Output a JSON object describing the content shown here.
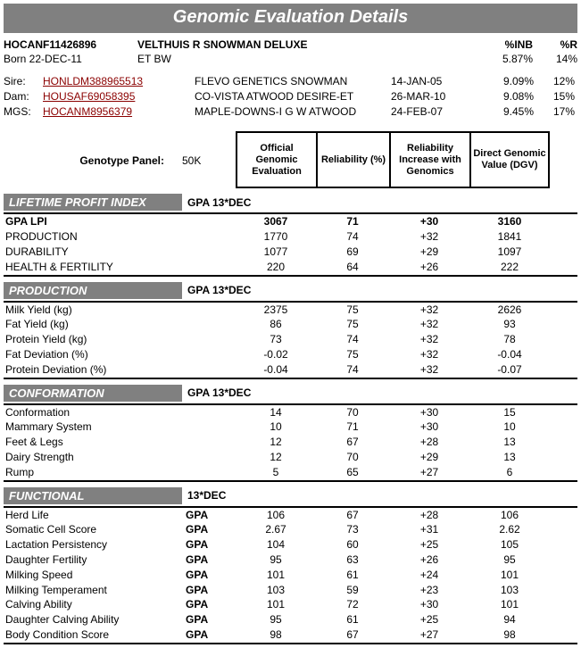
{
  "title": "Genomic Evaluation Details",
  "animal": {
    "id": "HOCANF11426896",
    "name": "VELTHUIS R SNOWMAN DELUXE",
    "born_label": "Born 22-DEC-11",
    "et": "ET BW",
    "inb_label": "%INB",
    "r_label": "%R",
    "inb": "5.87%",
    "r": "14%"
  },
  "lineage": [
    {
      "role": "Sire:",
      "id": "HONLDM388965513",
      "name": "FLEVO GENETICS SNOWMAN",
      "date": "14-JAN-05",
      "inb": "9.09%",
      "r": "12%"
    },
    {
      "role": "Dam:",
      "id": "HOUSAF69058395",
      "name": "CO-VISTA ATWOOD DESIRE-ET",
      "date": "26-MAR-10",
      "inb": "9.08%",
      "r": "15%"
    },
    {
      "role": "MGS:",
      "id": "HOCANM8956379",
      "name": "MAPLE-DOWNS-I G W ATWOOD",
      "date": "24-FEB-07",
      "inb": "9.45%",
      "r": "17%"
    }
  ],
  "genotype": {
    "label": "Genotype Panel:",
    "value": "50K"
  },
  "col_headers": {
    "c1": "Official Genomic Evaluation",
    "c2": "Reliability (%)",
    "c3": "Reliability Increase with Genomics",
    "c4": "Direct Genomic Value (DGV)"
  },
  "sections": [
    {
      "name": "LIFETIME PROFIT INDEX",
      "basis": "GPA 13*DEC",
      "rows": [
        {
          "label": "GPA LPI",
          "bold": true,
          "basis": "",
          "c1": "3067",
          "c2": "71",
          "c3": "+30",
          "c4": "3160"
        },
        {
          "label": "PRODUCTION",
          "basis": "",
          "c1": "1770",
          "c2": "74",
          "c3": "+32",
          "c4": "1841"
        },
        {
          "label": "DURABILITY",
          "basis": "",
          "c1": "1077",
          "c2": "69",
          "c3": "+29",
          "c4": "1097"
        },
        {
          "label": "HEALTH & FERTILITY",
          "basis": "",
          "c1": "220",
          "c2": "64",
          "c3": "+26",
          "c4": "222"
        }
      ]
    },
    {
      "name": "PRODUCTION",
      "basis": "GPA 13*DEC",
      "rows": [
        {
          "label": "Milk Yield (kg)",
          "basis": "",
          "c1": "2375",
          "c2": "75",
          "c3": "+32",
          "c4": "2626"
        },
        {
          "label": "Fat Yield (kg)",
          "basis": "",
          "c1": "86",
          "c2": "75",
          "c3": "+32",
          "c4": "93"
        },
        {
          "label": "Protein Yield (kg)",
          "basis": "",
          "c1": "73",
          "c2": "74",
          "c3": "+32",
          "c4": "78"
        },
        {
          "label": "Fat Deviation (%)",
          "basis": "",
          "c1": "-0.02",
          "c2": "75",
          "c3": "+32",
          "c4": "-0.04"
        },
        {
          "label": "Protein Deviation (%)",
          "basis": "",
          "c1": "-0.04",
          "c2": "74",
          "c3": "+32",
          "c4": "-0.07"
        }
      ]
    },
    {
      "name": "CONFORMATION",
      "basis": "GPA 13*DEC",
      "rows": [
        {
          "label": "Conformation",
          "basis": "",
          "c1": "14",
          "c2": "70",
          "c3": "+30",
          "c4": "15"
        },
        {
          "label": "Mammary System",
          "basis": "",
          "c1": "10",
          "c2": "71",
          "c3": "+30",
          "c4": "10"
        },
        {
          "label": "Feet & Legs",
          "basis": "",
          "c1": "12",
          "c2": "67",
          "c3": "+28",
          "c4": "13"
        },
        {
          "label": "Dairy Strength",
          "basis": "",
          "c1": "12",
          "c2": "70",
          "c3": "+29",
          "c4": "13"
        },
        {
          "label": "Rump",
          "basis": "",
          "c1": "5",
          "c2": "65",
          "c3": "+27",
          "c4": "6"
        }
      ]
    },
    {
      "name": "FUNCTIONAL",
      "basis": "13*DEC",
      "rows": [
        {
          "label": "Herd Life",
          "basis": "GPA",
          "c1": "106",
          "c2": "67",
          "c3": "+28",
          "c4": "106"
        },
        {
          "label": "Somatic Cell Score",
          "basis": "GPA",
          "c1": "2.67",
          "c2": "73",
          "c3": "+31",
          "c4": "2.62"
        },
        {
          "label": "Lactation Persistency",
          "basis": "GPA",
          "c1": "104",
          "c2": "60",
          "c3": "+25",
          "c4": "105"
        },
        {
          "label": "Daughter Fertility",
          "basis": "GPA",
          "c1": "95",
          "c2": "63",
          "c3": "+26",
          "c4": "95"
        },
        {
          "label": "Milking Speed",
          "basis": "GPA",
          "c1": "101",
          "c2": "61",
          "c3": "+24",
          "c4": "101"
        },
        {
          "label": "Milking Temperament",
          "basis": "GPA",
          "c1": "103",
          "c2": "59",
          "c3": "+23",
          "c4": "103"
        },
        {
          "label": "Calving Ability",
          "basis": "GPA",
          "c1": "101",
          "c2": "72",
          "c3": "+30",
          "c4": "101"
        },
        {
          "label": "Daughter Calving Ability",
          "basis": "GPA",
          "c1": "95",
          "c2": "61",
          "c3": "+25",
          "c4": "94"
        },
        {
          "label": "Body Condition Score",
          "basis": "GPA",
          "c1": "98",
          "c2": "67",
          "c3": "+27",
          "c4": "98"
        }
      ]
    }
  ]
}
